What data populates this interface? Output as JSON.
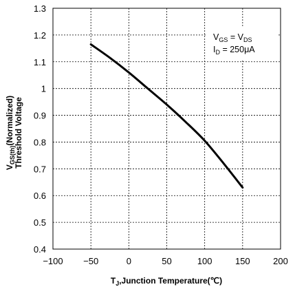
{
  "chart_data": {
    "type": "line",
    "title": "",
    "xlabel": {
      "main": "T",
      "sub": "J",
      "rest": ",Junction Temperature(℃)"
    },
    "ylabel": {
      "prefix": "V",
      "sub": "GS(th)",
      "rest": "(Normalized)",
      "line2": "Threshold Voltage"
    },
    "xlim": [
      -100,
      200
    ],
    "ylim": [
      0.4,
      1.3
    ],
    "x_ticks": [
      -100,
      -50,
      0,
      50,
      100,
      150,
      200
    ],
    "x_tick_labels": [
      "−100",
      "−50",
      "0",
      "50",
      "100",
      "150",
      "200"
    ],
    "y_ticks": [
      0.4,
      0.5,
      0.6,
      0.7,
      0.8,
      0.9,
      1.0,
      1.1,
      1.2,
      1.3
    ],
    "y_tick_labels": [
      "0.4",
      "0.5",
      "0.6",
      "0.7",
      "0.8",
      "0.9",
      "1",
      "1.1",
      "1.2",
      "1.3"
    ],
    "grid": true,
    "series": [
      {
        "x": [
          -50,
          -25,
          0,
          25,
          50,
          75,
          100,
          125,
          150
        ],
        "y": [
          1.165,
          1.115,
          1.06,
          1.0,
          0.94,
          0.875,
          0.805,
          0.72,
          0.63
        ]
      }
    ],
    "annotation": {
      "line1": {
        "a": "V",
        "a_sub": "GS",
        "eq": " = V",
        "b_sub": "DS"
      },
      "line2": {
        "a": "I",
        "a_sub": "D",
        "eq": " = 250μA"
      }
    }
  }
}
